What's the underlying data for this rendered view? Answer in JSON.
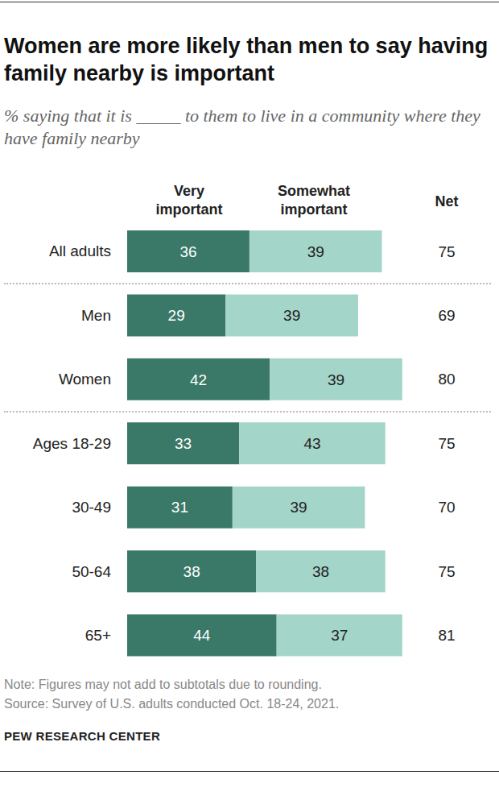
{
  "chart_data": {
    "type": "bar",
    "orientation": "horizontal",
    "stacked": true,
    "data_labels": true,
    "tick_labels": "y",
    "title": "Women are more likely than men to say having family nearby is important",
    "subtitle": "% saying that it is _____ to them to live in a community where they have family nearby",
    "categories": [
      "All adults",
      "Men",
      "Women",
      "Ages 18-29",
      "30-49",
      "50-64",
      "65+"
    ],
    "series": [
      {
        "name": "Very important",
        "color": "#3a7868",
        "values": [
          36,
          29,
          42,
          33,
          31,
          38,
          44
        ]
      },
      {
        "name": "Somewhat important",
        "color": "#a4d5c9",
        "values": [
          39,
          39,
          39,
          43,
          39,
          38,
          37
        ]
      }
    ],
    "net": {
      "label": "Net",
      "values": [
        75,
        69,
        80,
        75,
        70,
        75,
        81
      ]
    },
    "xlim": [
      0,
      100
    ],
    "note": "Note: Figures may not add to subtotals due to rounding.",
    "source": "Source: Survey of U.S. adults conducted Oct. 18-24, 2021.",
    "credit": "PEW RESEARCH CENTER"
  }
}
